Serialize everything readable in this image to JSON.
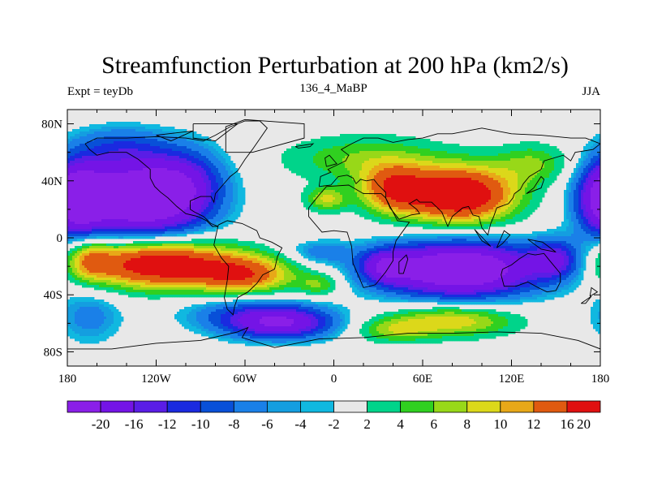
{
  "chart_data": {
    "type": "heatmap",
    "title": "Streamfunction Perturbation at 200 hPa (km2/s)",
    "left_label": "Expt = teyDb",
    "center_label": "136_4_MaBP",
    "right_label": "JJA",
    "xlim": [
      -180,
      180
    ],
    "ylim": [
      -90,
      90
    ],
    "x_ticks": [
      {
        "value": -180,
        "label": "180"
      },
      {
        "value": -120,
        "label": "120W"
      },
      {
        "value": -60,
        "label": "60W"
      },
      {
        "value": 0,
        "label": "0"
      },
      {
        "value": 60,
        "label": "60E"
      },
      {
        "value": 120,
        "label": "120E"
      },
      {
        "value": 180,
        "label": "180"
      }
    ],
    "y_ticks": [
      {
        "value": 80,
        "label": "80N"
      },
      {
        "value": 40,
        "label": "40N"
      },
      {
        "value": 0,
        "label": "0"
      },
      {
        "value": -40,
        "label": "40S"
      },
      {
        "value": -80,
        "label": "80S"
      }
    ],
    "levels": [
      -20,
      -16,
      -12,
      -10,
      -8,
      -6,
      -4,
      -2,
      2,
      4,
      6,
      8,
      10,
      12,
      16,
      20
    ],
    "level_labels": [
      "-20",
      "-16",
      "-12",
      "-10",
      "-8",
      "-6",
      "-4",
      "-2",
      "2",
      "4",
      "6",
      "8",
      "10",
      "12",
      "16",
      "20"
    ],
    "colors": [
      "#8a1fe8",
      "#7414e6",
      "#5a1de6",
      "#1a2ae0",
      "#0850d8",
      "#1a80e8",
      "#149ee0",
      "#10b8e0",
      "#e8e8e8",
      "#00d48a",
      "#30d020",
      "#98d818",
      "#dcd81a",
      "#e8a818",
      "#e05a10",
      "#e01010"
    ],
    "features": [
      {
        "lon": -130,
        "lat": 28,
        "sx": 30,
        "sy": 20,
        "amp": -23
      },
      {
        "lon": -98,
        "lat": 40,
        "sx": 18,
        "sy": 18,
        "amp": -6
      },
      {
        "lon": 185,
        "lat": 28,
        "sx": 14,
        "sy": 18,
        "amp": -18
      },
      {
        "lon": -120,
        "lat": -18,
        "sx": 34,
        "sy": 12,
        "amp": 21
      },
      {
        "lon": -60,
        "lat": -26,
        "sx": 24,
        "sy": 10,
        "amp": 14
      },
      {
        "lon": -10,
        "lat": -33,
        "sx": 10,
        "sy": 6,
        "amp": 6
      },
      {
        "lon": 85,
        "lat": -22,
        "sx": 38,
        "sy": 14,
        "amp": -23
      },
      {
        "lon": 35,
        "lat": -20,
        "sx": 12,
        "sy": 8,
        "amp": -10
      },
      {
        "lon": 150,
        "lat": -15,
        "sx": 12,
        "sy": 10,
        "amp": -10
      },
      {
        "lon": 85,
        "lat": 30,
        "sx": 26,
        "sy": 14,
        "amp": 22
      },
      {
        "lon": 40,
        "lat": 34,
        "sx": 16,
        "sy": 12,
        "amp": 13
      },
      {
        "lon": 20,
        "lat": 55,
        "sx": 38,
        "sy": 12,
        "amp": 6
      },
      {
        "lon": -5,
        "lat": 27,
        "sx": 10,
        "sy": 6,
        "amp": 8
      },
      {
        "lon": 135,
        "lat": 52,
        "sx": 18,
        "sy": 10,
        "amp": 6
      },
      {
        "lon": -35,
        "lat": -60,
        "sx": 26,
        "sy": 8,
        "amp": -14
      },
      {
        "lon": -60,
        "lat": -52,
        "sx": 32,
        "sy": 10,
        "amp": -6
      },
      {
        "lon": 80,
        "lat": -58,
        "sx": 30,
        "sy": 8,
        "amp": 10
      },
      {
        "lon": 40,
        "lat": -65,
        "sx": 18,
        "sy": 6,
        "amp": 6
      },
      {
        "lon": -165,
        "lat": -55,
        "sx": 16,
        "sy": 14,
        "amp": -5
      },
      {
        "lon": -145,
        "lat": 65,
        "sx": 22,
        "sy": 10,
        "amp": -5
      },
      {
        "lon": 195,
        "lat": -15,
        "sx": 10,
        "sy": 10,
        "amp": 8
      },
      {
        "lon": -10,
        "lat": -10,
        "sx": 16,
        "sy": 6,
        "amp": -5
      }
    ],
    "coastline": [
      [
        [
          -168,
          66
        ],
        [
          -160,
          70
        ],
        [
          -140,
          70
        ],
        [
          -120,
          71
        ],
        [
          -100,
          70
        ],
        [
          -88,
          68
        ],
        [
          -80,
          72
        ],
        [
          -70,
          78
        ],
        [
          -60,
          82
        ],
        [
          -50,
          82
        ],
        [
          -45,
          77
        ],
        [
          -55,
          62
        ],
        [
          -60,
          55
        ],
        [
          -65,
          47
        ],
        [
          -70,
          43
        ],
        [
          -75,
          37
        ],
        [
          -80,
          31
        ],
        [
          -81,
          25
        ],
        [
          -83,
          29
        ],
        [
          -90,
          29
        ],
        [
          -97,
          26
        ],
        [
          -97,
          20
        ],
        [
          -94,
          18
        ],
        [
          -88,
          15
        ],
        [
          -83,
          10
        ],
        [
          -78,
          8
        ],
        [
          -82,
          8
        ],
        [
          -86,
          12
        ],
        [
          -92,
          15
        ],
        [
          -100,
          17
        ],
        [
          -106,
          22
        ],
        [
          -112,
          28
        ],
        [
          -117,
          32
        ],
        [
          -121,
          36
        ],
        [
          -124,
          42
        ],
        [
          -124,
          48
        ],
        [
          -132,
          55
        ],
        [
          -140,
          60
        ],
        [
          -152,
          60
        ],
        [
          -160,
          58
        ],
        [
          -165,
          62
        ],
        [
          -168,
          66
        ]
      ],
      [
        [
          -78,
          9
        ],
        [
          -72,
          12
        ],
        [
          -62,
          10
        ],
        [
          -52,
          5
        ],
        [
          -50,
          0
        ],
        [
          -42,
          -3
        ],
        [
          -35,
          -7
        ],
        [
          -38,
          -13
        ],
        [
          -40,
          -22
        ],
        [
          -48,
          -26
        ],
        [
          -52,
          -32
        ],
        [
          -58,
          -38
        ],
        [
          -65,
          -42
        ],
        [
          -67,
          -48
        ],
        [
          -68,
          -54
        ],
        [
          -72,
          -50
        ],
        [
          -74,
          -42
        ],
        [
          -72,
          -30
        ],
        [
          -71,
          -20
        ],
        [
          -76,
          -14
        ],
        [
          -81,
          -5
        ],
        [
          -80,
          0
        ],
        [
          -78,
          9
        ]
      ],
      [
        [
          -17,
          15
        ],
        [
          -17,
          21
        ],
        [
          -10,
          30
        ],
        [
          -5,
          36
        ],
        [
          10,
          37
        ],
        [
          20,
          31
        ],
        [
          32,
          31
        ],
        [
          35,
          28
        ],
        [
          43,
          12
        ],
        [
          51,
          11
        ],
        [
          42,
          -2
        ],
        [
          40,
          -10
        ],
        [
          40,
          -16
        ],
        [
          35,
          -24
        ],
        [
          28,
          -33
        ],
        [
          20,
          -35
        ],
        [
          18,
          -30
        ],
        [
          13,
          -18
        ],
        [
          12,
          -6
        ],
        [
          9,
          4
        ],
        [
          0,
          5
        ],
        [
          -8,
          4
        ],
        [
          -17,
          15
        ]
      ],
      [
        [
          -10,
          36
        ],
        [
          -9,
          43
        ],
        [
          -2,
          46
        ],
        [
          -4,
          48
        ],
        [
          2,
          51
        ],
        [
          8,
          54
        ],
        [
          10,
          58
        ],
        [
          5,
          62
        ],
        [
          12,
          66
        ],
        [
          20,
          70
        ],
        [
          30,
          70
        ],
        [
          40,
          67
        ],
        [
          50,
          69
        ],
        [
          60,
          70
        ],
        [
          70,
          73
        ],
        [
          80,
          73
        ],
        [
          100,
          77
        ],
        [
          120,
          73
        ],
        [
          140,
          72
        ],
        [
          160,
          70
        ],
        [
          170,
          70
        ],
        [
          180,
          66
        ],
        [
          175,
          62
        ],
        [
          163,
          60
        ],
        [
          160,
          54
        ],
        [
          155,
          58
        ],
        [
          142,
          54
        ],
        [
          140,
          48
        ],
        [
          132,
          43
        ],
        [
          128,
          38
        ],
        [
          126,
          34
        ],
        [
          122,
          31
        ],
        [
          121,
          28
        ],
        [
          118,
          24
        ],
        [
          110,
          21
        ],
        [
          108,
          15
        ],
        [
          106,
          10
        ],
        [
          104,
          2
        ],
        [
          100,
          7
        ],
        [
          98,
          15
        ],
        [
          94,
          16
        ],
        [
          91,
          22
        ],
        [
          87,
          21
        ],
        [
          80,
          15
        ],
        [
          77,
          8
        ],
        [
          73,
          18
        ],
        [
          70,
          21
        ],
        [
          66,
          25
        ],
        [
          58,
          25
        ],
        [
          56,
          27
        ],
        [
          51,
          24
        ],
        [
          56,
          20
        ],
        [
          58,
          17
        ],
        [
          52,
          16
        ],
        [
          44,
          13
        ],
        [
          38,
          21
        ],
        [
          35,
          28
        ],
        [
          35,
          32
        ],
        [
          30,
          37
        ],
        [
          27,
          41
        ],
        [
          22,
          40
        ],
        [
          18,
          41
        ],
        [
          15,
          38
        ],
        [
          13,
          42
        ],
        [
          9,
          44
        ],
        [
          3,
          43
        ],
        [
          -2,
          37
        ],
        [
          -10,
          36
        ]
      ],
      [
        [
          114,
          -22
        ],
        [
          113,
          -26
        ],
        [
          115,
          -34
        ],
        [
          123,
          -34
        ],
        [
          131,
          -31
        ],
        [
          138,
          -35
        ],
        [
          144,
          -38
        ],
        [
          150,
          -37
        ],
        [
          153,
          -31
        ],
        [
          153,
          -25
        ],
        [
          145,
          -15
        ],
        [
          142,
          -11
        ],
        [
          136,
          -12
        ],
        [
          131,
          -11
        ],
        [
          125,
          -15
        ],
        [
          120,
          -19
        ],
        [
          114,
          -22
        ]
      ],
      [
        [
          -180,
          -78
        ],
        [
          -150,
          -78
        ],
        [
          -120,
          -74
        ],
        [
          -90,
          -72
        ],
        [
          -65,
          -66
        ],
        [
          -58,
          -63
        ],
        [
          -62,
          -70
        ],
        [
          -40,
          -77
        ],
        [
          -10,
          -71
        ],
        [
          20,
          -70
        ],
        [
          50,
          -67
        ],
        [
          80,
          -67
        ],
        [
          110,
          -66
        ],
        [
          140,
          -67
        ],
        [
          165,
          -72
        ],
        [
          180,
          -78
        ]
      ],
      [
        [
          44,
          -25
        ],
        [
          47,
          -25
        ],
        [
          50,
          -15
        ],
        [
          49,
          -12
        ],
        [
          44,
          -17
        ],
        [
          44,
          -25
        ]
      ],
      [
        [
          -73,
          60
        ],
        [
          -55,
          60
        ],
        [
          -20,
          70
        ],
        [
          -20,
          80
        ],
        [
          -60,
          83
        ],
        [
          -73,
          78
        ],
        [
          -73,
          60
        ]
      ],
      [
        [
          -95,
          80
        ],
        [
          -65,
          80
        ],
        [
          -80,
          68
        ],
        [
          -95,
          70
        ],
        [
          -95,
          80
        ]
      ],
      [
        [
          -120,
          72
        ],
        [
          -95,
          75
        ],
        [
          -110,
          68
        ],
        [
          -120,
          72
        ]
      ],
      [
        [
          -5,
          50
        ],
        [
          2,
          52
        ],
        [
          -3,
          58
        ],
        [
          -6,
          56
        ],
        [
          -5,
          50
        ]
      ],
      [
        [
          130,
          31
        ],
        [
          140,
          35
        ],
        [
          142,
          41
        ],
        [
          140,
          43
        ],
        [
          135,
          35
        ],
        [
          130,
          31
        ]
      ],
      [
        [
          95,
          6
        ],
        [
          106,
          -6
        ],
        [
          100,
          -2
        ],
        [
          95,
          6
        ]
      ],
      [
        [
          110,
          -7
        ],
        [
          115,
          5
        ],
        [
          119,
          2
        ],
        [
          114,
          -4
        ],
        [
          110,
          -7
        ]
      ],
      [
        [
          131,
          -1
        ],
        [
          141,
          -3
        ],
        [
          150,
          -10
        ],
        [
          140,
          -8
        ],
        [
          131,
          -1
        ]
      ],
      [
        [
          173,
          -41
        ],
        [
          178,
          -38
        ],
        [
          174,
          -35
        ],
        [
          173,
          -41
        ]
      ],
      [
        [
          167,
          -46
        ],
        [
          174,
          -41
        ],
        [
          170,
          -46
        ],
        [
          167,
          -46
        ]
      ],
      [
        [
          -26,
          64
        ],
        [
          -14,
          66
        ],
        [
          -16,
          64
        ],
        [
          -24,
          63
        ],
        [
          -26,
          64
        ]
      ]
    ]
  }
}
